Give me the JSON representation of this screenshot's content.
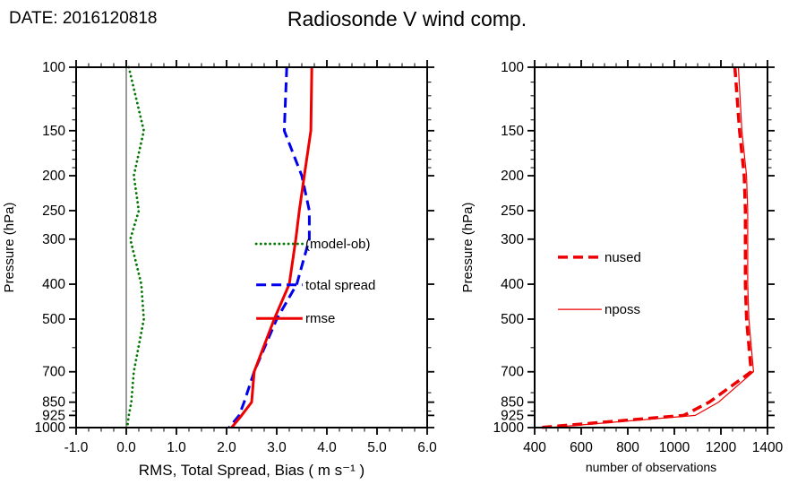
{
  "header": {
    "date_label": "DATE: 2016120818",
    "title": "Radiosonde V wind comp."
  },
  "chart_data": [
    {
      "type": "line",
      "id": "stats-panel",
      "xlabel": "RMS, Total Spread, Bias ( m s⁻¹ )",
      "ylabel": "Pressure (hPa)",
      "xlim": [
        -1.0,
        6.0
      ],
      "xticks": [
        -1,
        0,
        1,
        2,
        3,
        4,
        5,
        6
      ],
      "xtick_labels": [
        "-1.0",
        "0.0",
        "1.0",
        "2.0",
        "3.0",
        "4.0",
        "5.0",
        "6.0"
      ],
      "xminor_step": 0.25,
      "yscale": "log",
      "ylim": [
        100,
        1000
      ],
      "yticks": [
        100,
        150,
        200,
        250,
        300,
        400,
        500,
        700,
        850,
        925,
        1000
      ],
      "yminor": [
        110,
        120,
        130,
        140,
        160,
        170,
        180,
        190,
        600,
        800,
        900
      ],
      "refline_x": 0.0,
      "levels": [
        100,
        150,
        200,
        250,
        300,
        400,
        500,
        700,
        850,
        925,
        1000
      ],
      "series": [
        {
          "name": "(model-ob)",
          "color": "#007700",
          "style": "dotted",
          "width": 2.8,
          "values": [
            0.05,
            0.35,
            0.15,
            0.25,
            0.08,
            0.3,
            0.35,
            0.15,
            0.1,
            0.05,
            0.02
          ]
        },
        {
          "name": "total spread",
          "color": "#0000ee",
          "style": "dashed",
          "width": 3,
          "values": [
            3.2,
            3.15,
            3.5,
            3.65,
            3.65,
            3.4,
            3.0,
            2.55,
            2.35,
            2.25,
            2.05
          ]
        },
        {
          "name": "rmse",
          "color": "#ee0000",
          "style": "solid",
          "width": 3,
          "values": [
            3.7,
            3.68,
            3.55,
            3.45,
            3.38,
            3.25,
            2.95,
            2.55,
            2.5,
            2.3,
            2.1
          ]
        }
      ],
      "legend": {
        "fx_line": [
          0.513,
          0.645
        ],
        "fx_text": 0.653,
        "fy": [
          0.49,
          0.604,
          0.697
        ]
      }
    },
    {
      "type": "line",
      "id": "obs-panel",
      "xlabel": "number of observations",
      "ylabel": "Pressure (hPa)",
      "xlim": [
        400,
        1400
      ],
      "xticks": [
        400,
        600,
        800,
        1000,
        1200,
        1400
      ],
      "xtick_labels": [
        "400",
        "600",
        "800",
        "1000",
        "1200",
        "1400"
      ],
      "xminor_step": 50,
      "yscale": "log",
      "ylim": [
        100,
        1000
      ],
      "yticks": [
        100,
        150,
        200,
        250,
        300,
        400,
        500,
        700,
        850,
        925,
        1000
      ],
      "yminor": [
        110,
        120,
        130,
        140,
        160,
        170,
        180,
        190,
        600,
        800,
        900
      ],
      "levels": [
        100,
        150,
        200,
        250,
        300,
        400,
        500,
        700,
        850,
        925,
        1000
      ],
      "series": [
        {
          "name": "nused",
          "color": "#ee0000",
          "style": "dashed",
          "width": 3.5,
          "values": [
            1260,
            1280,
            1300,
            1305,
            1305,
            1305,
            1310,
            1330,
            1150,
            1040,
            420
          ]
        },
        {
          "name": "nposs",
          "color": "#ee0000",
          "style": "solid",
          "width": 1.2,
          "values": [
            1275,
            1290,
            1310,
            1315,
            1315,
            1315,
            1320,
            1340,
            1190,
            1090,
            460
          ]
        }
      ],
      "legend": {
        "fx_line": [
          0.1,
          0.288
        ],
        "fx_text": 0.3,
        "fy": [
          0.527,
          0.672
        ]
      }
    }
  ]
}
